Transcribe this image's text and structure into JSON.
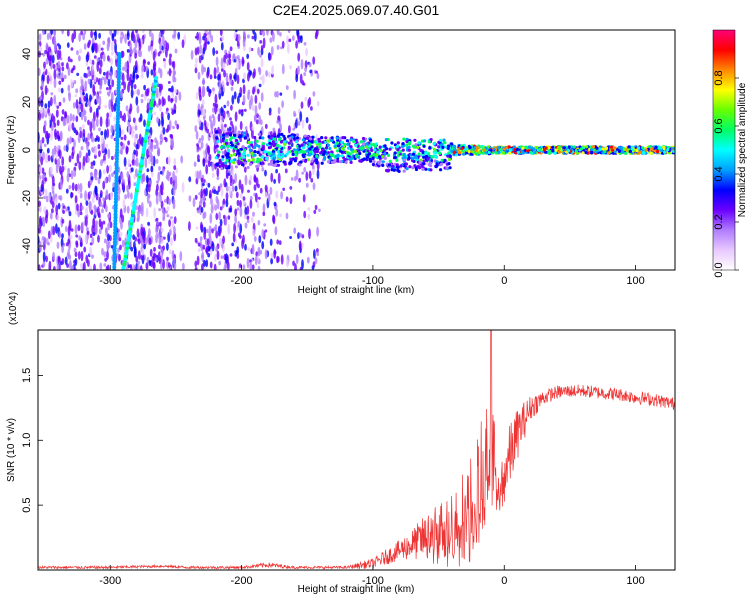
{
  "title": "C2E4.2025.069.07.40.G01",
  "chart_data": [
    {
      "type": "heatmap",
      "title": "C2E4.2025.069.07.40.G01",
      "xlabel": "Height of straight line (km)",
      "ylabel": "Frequency (Hz)",
      "xlim": [
        -355,
        130
      ],
      "ylim": [
        -50,
        50
      ],
      "xticks": [
        -300,
        -200,
        -100,
        0,
        100
      ],
      "yticks": [
        -40,
        -20,
        0,
        20,
        40
      ],
      "grid": false,
      "colorbar": {
        "label": "Normalized spectral amplitude",
        "range": [
          0.0,
          1.0
        ],
        "ticks": [
          "0.0",
          "0.2",
          "0.4",
          "0.6",
          "0.8"
        ],
        "tick_values": [
          0.0,
          0.2,
          0.4,
          0.6,
          0.8
        ],
        "colors": [
          "#ffffff",
          "#e8c8ff",
          "#b07cff",
          "#6a00ff",
          "#0000ff",
          "#00a0ff",
          "#00ffff",
          "#00ff66",
          "#66ff00",
          "#ffff00",
          "#ff8800",
          "#ff0000",
          "#ff0077"
        ]
      },
      "features": {
        "noise_region_x": [
          -355,
          -140
        ],
        "noise_gap_x": [
          -250,
          -235
        ],
        "carrier_band": {
          "x": [
            -220,
            130
          ],
          "center_hz": 0,
          "half_width_hz_start": 8,
          "half_width_hz_end": 2
        },
        "line_1": {
          "x": [
            -297,
            -293
          ],
          "y": [
            -50,
            40
          ]
        },
        "line_2": {
          "x": [
            -290,
            -265
          ],
          "y": [
            -50,
            30
          ]
        }
      }
    },
    {
      "type": "line",
      "xlabel": "Height of straight line (km)",
      "ylabel": "SNR (10 * v/v)",
      "y_multiplier_label": "(x10^4)",
      "xlim": [
        -355,
        130
      ],
      "ylim": [
        0,
        1.85
      ],
      "xticks": [
        -300,
        -200,
        -100,
        0,
        100
      ],
      "yticks": [
        0.5,
        1.0,
        1.5
      ],
      "ytick_labels": [
        "0.5",
        "1.0",
        "1.5"
      ],
      "grid": false,
      "series": [
        {
          "color": "#ee3333",
          "x": [
            -355,
            -300,
            -260,
            -240,
            -200,
            -180,
            -160,
            -140,
            -120,
            -100,
            -90,
            -80,
            -70,
            -60,
            -50,
            -40,
            -30,
            -20,
            -15,
            -10,
            -5,
            0,
            5,
            10,
            20,
            30,
            40,
            50,
            60,
            70,
            80,
            90,
            100,
            110,
            120,
            130
          ],
          "y": [
            0.02,
            0.02,
            0.03,
            0.02,
            0.02,
            0.04,
            0.02,
            0.02,
            0.02,
            0.05,
            0.1,
            0.15,
            0.2,
            0.25,
            0.3,
            0.35,
            0.45,
            0.6,
            0.8,
            0.9,
            0.75,
            0.75,
            0.9,
            1.05,
            1.25,
            1.33,
            1.37,
            1.38,
            1.38,
            1.37,
            1.36,
            1.35,
            1.33,
            1.32,
            1.3,
            1.28
          ],
          "spread": [
            0.01,
            0.01,
            0.01,
            0.01,
            0.01,
            0.02,
            0.01,
            0.01,
            0.01,
            0.04,
            0.06,
            0.08,
            0.12,
            0.18,
            0.22,
            0.3,
            0.35,
            0.45,
            0.45,
            0.4,
            0.25,
            0.25,
            0.25,
            0.2,
            0.1,
            0.06,
            0.05,
            0.05,
            0.05,
            0.05,
            0.05,
            0.05,
            0.05,
            0.05,
            0.05,
            0.05
          ]
        }
      ],
      "spike": {
        "x": -10,
        "y": 1.85
      }
    }
  ]
}
